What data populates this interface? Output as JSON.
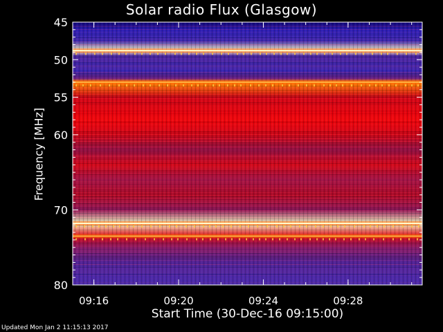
{
  "chart_data": {
    "type": "heatmap",
    "title": "Solar radio Flux (Glasgow)",
    "xlabel": "Start Time (30-Dec-16 09:15:00)",
    "ylabel": "Frequency [MHz]",
    "xlim": [
      "09:15:00",
      "09:31:30"
    ],
    "ylim": [
      45,
      80
    ],
    "y_ticks": [
      45,
      50,
      55,
      60,
      70,
      80
    ],
    "x_ticks": [
      "09:16",
      "09:20",
      "09:24",
      "09:28"
    ],
    "colormap": [
      "#00003c",
      "#0000c8",
      "#3c28b4",
      "#7a1e78",
      "#b40a28",
      "#ff0000",
      "#ff8c00",
      "#ffff78",
      "#ffffff"
    ],
    "frequency_profile": [
      {
        "freq": 45.0,
        "level": 0.05
      },
      {
        "freq": 46.0,
        "level": 0.22
      },
      {
        "freq": 47.5,
        "level": 0.25
      },
      {
        "freq": 48.8,
        "level": 0.95
      },
      {
        "freq": 49.5,
        "level": 0.28
      },
      {
        "freq": 51.5,
        "level": 0.24
      },
      {
        "freq": 52.5,
        "level": 0.35
      },
      {
        "freq": 53.0,
        "level": 0.75
      },
      {
        "freq": 55.0,
        "level": 0.55
      },
      {
        "freq": 58.0,
        "level": 0.6
      },
      {
        "freq": 60.0,
        "level": 0.55
      },
      {
        "freq": 62.0,
        "level": 0.45
      },
      {
        "freq": 64.0,
        "level": 0.55
      },
      {
        "freq": 66.0,
        "level": 0.45
      },
      {
        "freq": 68.0,
        "level": 0.5
      },
      {
        "freq": 70.0,
        "level": 0.42
      },
      {
        "freq": 71.8,
        "level": 0.95
      },
      {
        "freq": 73.5,
        "level": 0.55
      },
      {
        "freq": 75.0,
        "level": 0.4
      },
      {
        "freq": 77.0,
        "level": 0.3
      },
      {
        "freq": 80.0,
        "level": 0.25
      }
    ],
    "bright_lines_mhz": [
      48.8,
      53.0,
      71.8,
      73.5
    ]
  },
  "footer": "Updated Mon Jan  2 11:15:13 2017"
}
